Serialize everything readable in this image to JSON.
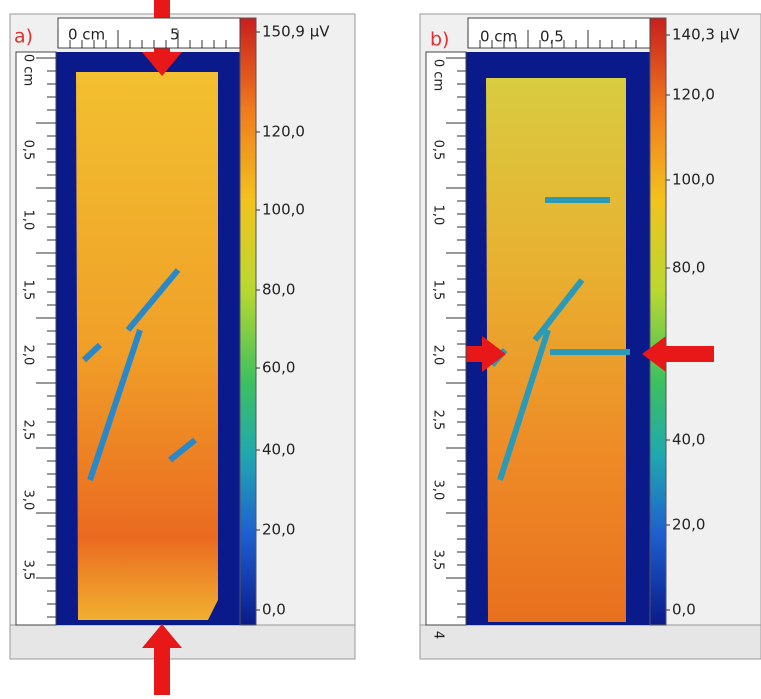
{
  "panels": [
    {
      "label": "a)",
      "top_ruler": [
        "0 cm",
        "5"
      ],
      "left_ruler": [
        "0 cm",
        "0,5",
        "1,0",
        "1,5",
        "2,0",
        "2,5",
        "3,0",
        "3,5"
      ],
      "colorbar": [
        "150,9 µV",
        "120,0",
        "100,0",
        "80,0",
        "60,0",
        "40,0",
        "20,0",
        "0,0"
      ]
    },
    {
      "label": "b)",
      "top_ruler": [
        "0 cm",
        "0,5"
      ],
      "left_ruler": [
        "0 cm",
        "0,5",
        "1,0",
        "1,5",
        "2,0",
        "2,5",
        "3,0",
        "3,5",
        "4"
      ],
      "colorbar": [
        "140,3 µV",
        "120,0",
        "100,0",
        "80,0",
        "40,0",
        "20,0",
        "0,0"
      ]
    }
  ]
}
